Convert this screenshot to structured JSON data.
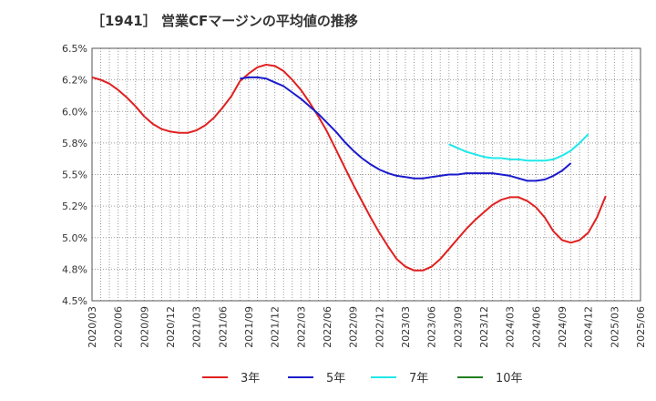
{
  "chart_data": {
    "type": "line",
    "title": "［1941］ 営業CFマージンの平均値の推移",
    "ylim": [
      4.5,
      6.5
    ],
    "yticks": [
      4.5,
      4.75,
      5.0,
      5.25,
      5.5,
      5.75,
      6.0,
      6.25,
      6.5
    ],
    "ytick_labels": [
      "4.5%",
      "4.8%",
      "5.0%",
      "5.2%",
      "5.5%",
      "5.8%",
      "6.0%",
      "6.2%",
      "6.5%"
    ],
    "xtick_labels": [
      "2020/03",
      "2020/06",
      "2020/09",
      "2020/12",
      "2021/03",
      "2021/06",
      "2021/09",
      "2021/12",
      "2022/03",
      "2022/06",
      "2022/09",
      "2022/12",
      "2023/03",
      "2023/06",
      "2023/09",
      "2023/12",
      "2024/03",
      "2024/06",
      "2024/09",
      "2024/12",
      "2025/03",
      "2025/06"
    ],
    "grid": true,
    "legend_position": "bottom",
    "series": [
      {
        "name": "3年",
        "color": "#e02020",
        "start_index": 0,
        "values": [
          6.27,
          6.25,
          6.22,
          6.17,
          6.11,
          6.04,
          5.96,
          5.9,
          5.86,
          5.84,
          5.83,
          5.83,
          5.85,
          5.89,
          5.95,
          6.03,
          6.12,
          6.24,
          6.3,
          6.35,
          6.37,
          6.36,
          6.32,
          6.25,
          6.17,
          6.07,
          5.96,
          5.84,
          5.7,
          5.56,
          5.42,
          5.29,
          5.16,
          5.04,
          4.93,
          4.83,
          4.77,
          4.74,
          4.74,
          4.77,
          4.83,
          4.91,
          4.99,
          5.07,
          5.14,
          5.2,
          5.26,
          5.3,
          5.32,
          5.32,
          5.29,
          5.24,
          5.16,
          5.05,
          4.98,
          4.96,
          4.98,
          5.04,
          5.16,
          5.33
        ]
      },
      {
        "name": "5年",
        "color": "#1a1acc",
        "start_index": 17,
        "values": [
          6.26,
          6.27,
          6.27,
          6.26,
          6.23,
          6.2,
          6.15,
          6.1,
          6.04,
          5.98,
          5.91,
          5.84,
          5.76,
          5.69,
          5.63,
          5.58,
          5.54,
          5.51,
          5.49,
          5.48,
          5.47,
          5.47,
          5.48,
          5.49,
          5.5,
          5.5,
          5.51,
          5.51,
          5.51,
          5.51,
          5.5,
          5.49,
          5.47,
          5.45,
          5.45,
          5.46,
          5.49,
          5.53,
          5.59
        ]
      },
      {
        "name": "7年",
        "color": "#20e8e8",
        "start_index": 41,
        "values": [
          5.74,
          5.71,
          5.68,
          5.66,
          5.64,
          5.63,
          5.63,
          5.62,
          5.62,
          5.61,
          5.61,
          5.61,
          5.62,
          5.65,
          5.69,
          5.75,
          5.82
        ]
      },
      {
        "name": "10年",
        "color": "#208020",
        "start_index": 0,
        "values": []
      }
    ]
  }
}
